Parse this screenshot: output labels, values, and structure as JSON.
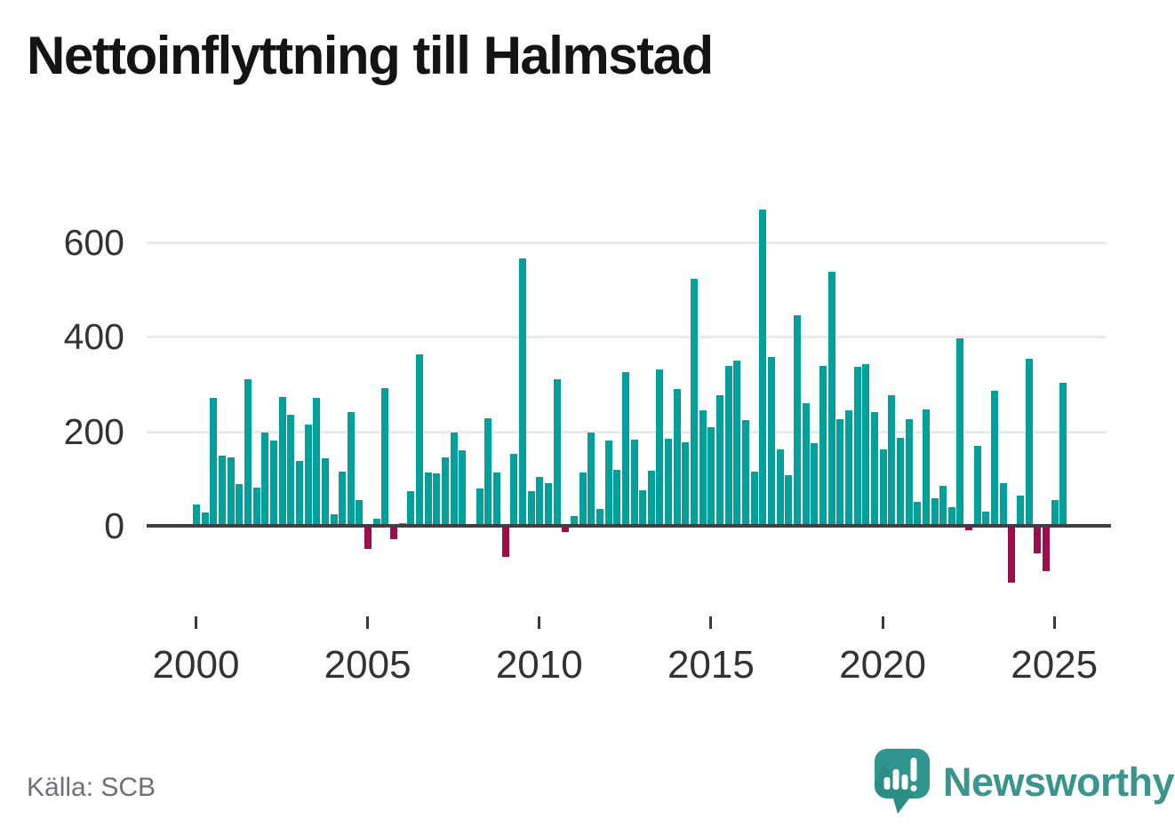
{
  "title": "Nettoinflyttning till Halmstad",
  "source": "Källa: SCB",
  "branding": {
    "logo_text": "Newsworthy",
    "logo_icon": "speech-bubble-bar-chart-icon",
    "logo_color": "#2f968d"
  },
  "colors": {
    "positive_bar": "#02a09a",
    "negative_bar": "#9d0d49",
    "axis_line": "#3d4045",
    "grid_line": "#eaeaea",
    "tick_text": "#333333",
    "muted_text": "#6f6f78"
  },
  "chart_data": {
    "type": "bar",
    "title": "Nettoinflyttning till Halmstad",
    "xlabel": "",
    "ylabel": "",
    "frequency": "quarterly",
    "start": "2000 Q1",
    "end": "2025 Q2",
    "grid": true,
    "y_ticks": [
      0,
      200,
      400,
      600
    ],
    "ylim": [
      -140,
      700
    ],
    "x_tick_years": [
      2000,
      2005,
      2010,
      2015,
      2020,
      2025
    ],
    "years": [
      {
        "year": 2000,
        "quarters": [
          45,
          28,
          270,
          148
        ]
      },
      {
        "year": 2001,
        "quarters": [
          144,
          88,
          310,
          80
        ]
      },
      {
        "year": 2002,
        "quarters": [
          197,
          180,
          273,
          235
        ]
      },
      {
        "year": 2003,
        "quarters": [
          137,
          215,
          271,
          142
        ]
      },
      {
        "year": 2004,
        "quarters": [
          25,
          114,
          240,
          54
        ]
      },
      {
        "year": 2005,
        "quarters": [
          -48,
          15,
          291,
          -29
        ]
      },
      {
        "year": 2006,
        "quarters": [
          5,
          73,
          362,
          112
        ]
      },
      {
        "year": 2007,
        "quarters": [
          111,
          144,
          198,
          160
        ]
      },
      {
        "year": 2008,
        "quarters": [
          0,
          79,
          227,
          113
        ]
      },
      {
        "year": 2009,
        "quarters": [
          -65,
          152,
          565,
          73
        ]
      },
      {
        "year": 2010,
        "quarters": [
          103,
          90,
          310,
          -13
        ]
      },
      {
        "year": 2011,
        "quarters": [
          20,
          112,
          197,
          35
        ]
      },
      {
        "year": 2012,
        "quarters": [
          180,
          119,
          325,
          183
        ]
      },
      {
        "year": 2013,
        "quarters": [
          76,
          116,
          330,
          185
        ]
      },
      {
        "year": 2014,
        "quarters": [
          290,
          177,
          523,
          244
        ]
      },
      {
        "year": 2015,
        "quarters": [
          208,
          276,
          339,
          350
        ]
      },
      {
        "year": 2016,
        "quarters": [
          223,
          115,
          670,
          357
        ]
      },
      {
        "year": 2017,
        "quarters": [
          162,
          108,
          446,
          259
        ]
      },
      {
        "year": 2018,
        "quarters": [
          175,
          338,
          537,
          225
        ]
      },
      {
        "year": 2019,
        "quarters": [
          245,
          336,
          342,
          240
        ]
      },
      {
        "year": 2020,
        "quarters": [
          162,
          276,
          187,
          225
        ]
      },
      {
        "year": 2021,
        "quarters": [
          50,
          247,
          59,
          84
        ]
      },
      {
        "year": 2022,
        "quarters": [
          40,
          396,
          -9,
          170
        ]
      },
      {
        "year": 2023,
        "quarters": [
          30,
          286,
          90,
          -120
        ]
      },
      {
        "year": 2024,
        "quarters": [
          64,
          353,
          -58,
          -95
        ]
      },
      {
        "year": 2025,
        "quarters": [
          55,
          303
        ]
      }
    ]
  }
}
